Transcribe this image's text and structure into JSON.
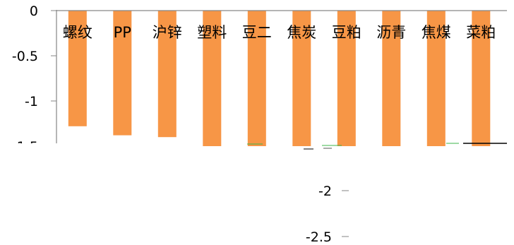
{
  "chart_data": {
    "type": "bar",
    "categories": [
      "螺纹",
      "PP",
      "沪锌",
      "塑料",
      "豆二",
      "焦炭",
      "豆粕",
      "沥青",
      "焦煤",
      "菜粕"
    ],
    "values": [
      -1.28,
      -1.38,
      -1.4,
      -1.5,
      -1.5,
      -1.5,
      -1.5,
      -1.5,
      -1.5,
      -1.5
    ],
    "yticks_upper": [
      "0",
      "-0.5",
      "-1",
      "-1.5"
    ],
    "yticks_lower": [
      "-2",
      "-2.5"
    ],
    "ylim": [
      -1.5,
      0
    ],
    "bar_color": "#f79646",
    "axis_color": "#868686",
    "title": "",
    "xlabel": "",
    "ylabel": ""
  }
}
